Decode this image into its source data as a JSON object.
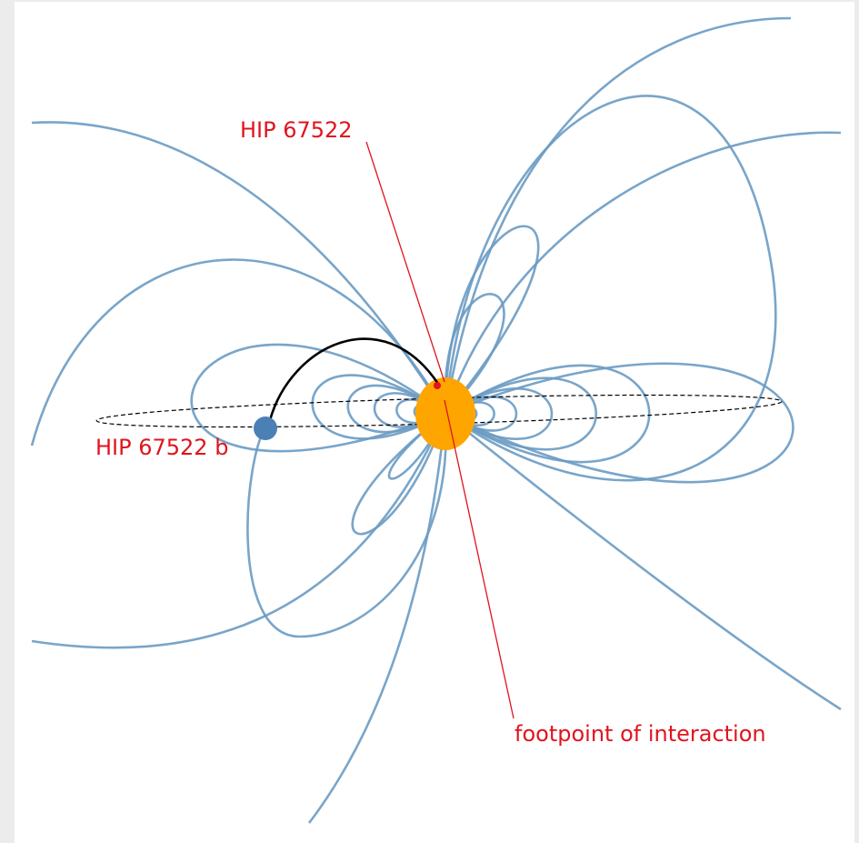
{
  "star": {
    "label": "HIP 67522"
  },
  "planet": {
    "label": "HIP 67522 b"
  },
  "annotation": {
    "label": "footpoint of interaction"
  }
}
